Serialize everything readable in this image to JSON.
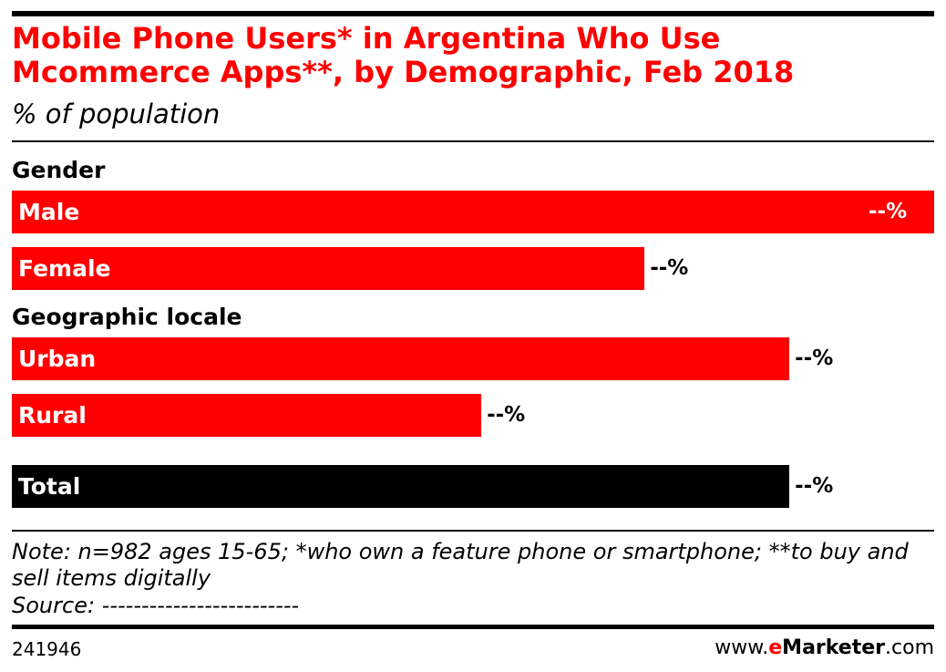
{
  "chart_data": {
    "type": "bar",
    "title": "Mobile Phone Users* in Argentina Who Use Mcommerce Apps**, by Demographic, Feb 2018",
    "subtitle": "% of population",
    "groups": [
      {
        "name": "Gender",
        "color": "#ff0000",
        "categories": [
          "Male",
          "Female"
        ],
        "values": [
          100,
          68.6
        ],
        "value_labels": [
          "--%",
          "--%"
        ]
      },
      {
        "name": "Geographic locale",
        "color": "#ff0000",
        "categories": [
          "Urban",
          "Rural"
        ],
        "values": [
          84.3,
          50.9
        ],
        "value_labels": [
          "--%",
          "--%"
        ]
      },
      {
        "color": "#000000",
        "categories": [
          "Total"
        ],
        "values": [
          84.3
        ],
        "value_labels": [
          "--%"
        ]
      }
    ],
    "note": "Note: n=982 ages 15-65; *who own a feature phone or smartphone; **to buy and sell items digitally",
    "source": "Source: -------------------------",
    "chart_id": "241946",
    "brand": [
      "www.",
      "e",
      "Marketer",
      ".com"
    ]
  }
}
